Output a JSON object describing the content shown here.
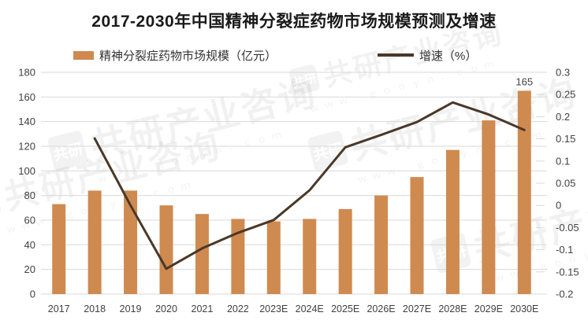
{
  "title": "2017-2030年中国精神分裂症药物市场规模预测及增速",
  "legend": {
    "market_label": "精神分裂症药物市场规模（亿元）",
    "growth_label": "增速（%）"
  },
  "watermark": {
    "brand": "共研产业咨询",
    "logo_text": "共研",
    "url": "ｗｗｗ．ｇｏｎｙｎ．ｃｏｍ"
  },
  "colors": {
    "bar": "#CF8A50",
    "line": "#4A3828",
    "grid": "#D9D9D9",
    "axis_text": "#404040",
    "title_text": "#1a1a1a"
  },
  "chart_data": {
    "type": "bar",
    "subtype": "combo-bar-line-dual-axis",
    "title": "2017-2030年中国精神分裂症药物市场规模预测及增速",
    "categories": [
      "2017",
      "2018",
      "2019",
      "2020",
      "2021",
      "2022",
      "2023E",
      "2024E",
      "2025E",
      "2026E",
      "2027E",
      "2028E",
      "2029E",
      "2030E"
    ],
    "series": [
      {
        "name": "精神分裂症药物市场规模（亿元）",
        "type": "bar",
        "axis": "left",
        "values": [
          73,
          84,
          84,
          72,
          65,
          61,
          59,
          61,
          69,
          80,
          95,
          117,
          141,
          165
        ]
      },
      {
        "name": "增速（%）",
        "type": "line",
        "axis": "right",
        "values": [
          null,
          0.151,
          0.0,
          -0.143,
          -0.097,
          -0.062,
          -0.033,
          0.034,
          0.131,
          0.159,
          0.188,
          0.232,
          0.205,
          0.17
        ]
      }
    ],
    "left_axis": {
      "min": 0,
      "max": 180,
      "step": 20,
      "tick_labels": [
        "180",
        "160",
        "140",
        "120",
        "100",
        "80",
        "60",
        "40",
        "20",
        "0"
      ]
    },
    "right_axis": {
      "min": -0.2,
      "max": 0.3,
      "step": 0.05,
      "tick_labels": [
        "0.3",
        "0.25",
        "0.2",
        "0.15",
        "0.1",
        "0.05",
        "0",
        "-0.05",
        "-0.1",
        "-0.15",
        "-0.2"
      ]
    },
    "data_labels": [
      {
        "category": "2030E",
        "series": "精神分裂症药物市场规模（亿元）",
        "text": "165"
      }
    ],
    "grid": true,
    "legend_position": "top"
  }
}
